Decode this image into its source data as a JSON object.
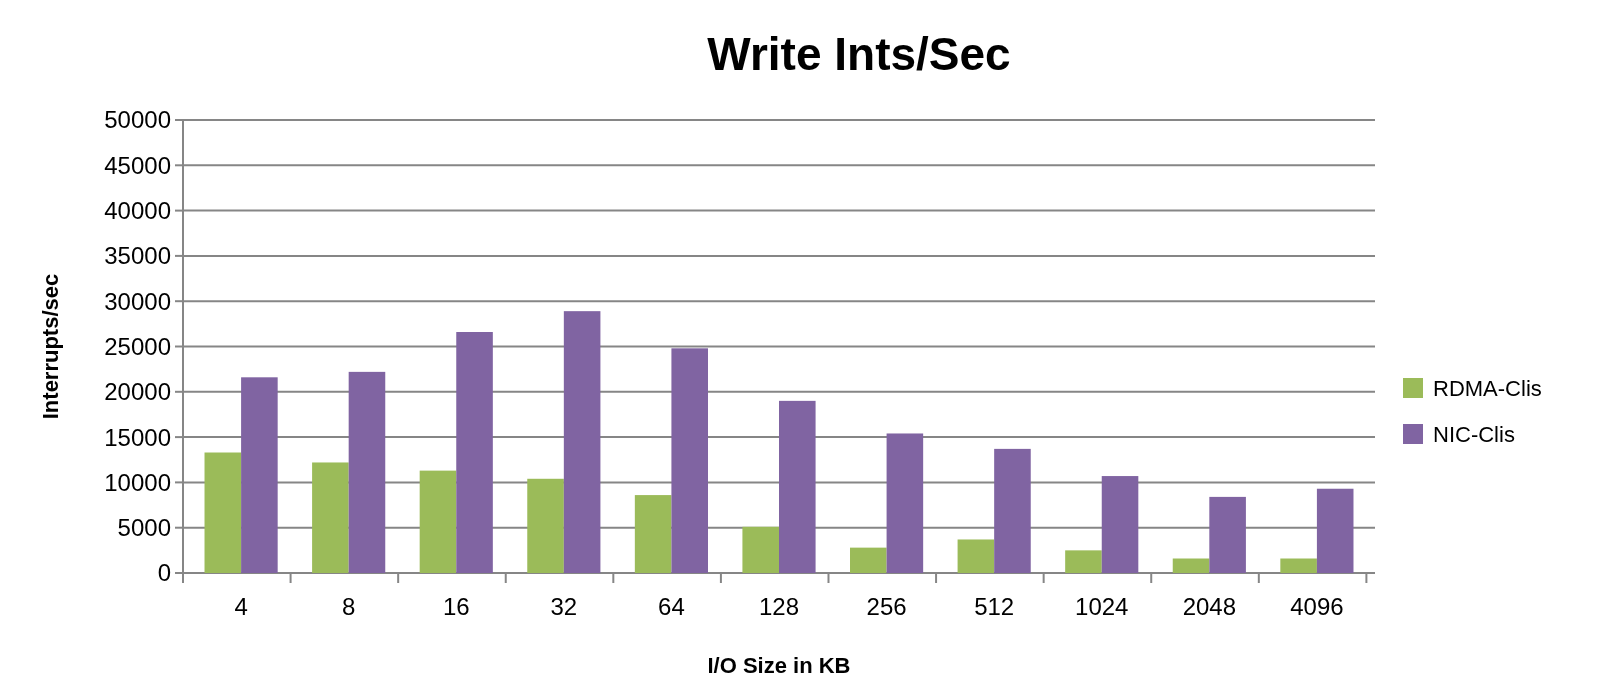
{
  "chart_data": {
    "type": "bar",
    "title": "Write Ints/Sec",
    "xlabel": "I/O Size in KB",
    "ylabel": "Interrupts/sec",
    "categories": [
      "4",
      "8",
      "16",
      "32",
      "64",
      "128",
      "256",
      "512",
      "1024",
      "2048",
      "4096"
    ],
    "series": [
      {
        "name": "RDMA-Clis",
        "color": "#9bbb59",
        "values": [
          13300,
          12200,
          11300,
          10400,
          8600,
          5100,
          2800,
          3700,
          2500,
          1600,
          1600
        ]
      },
      {
        "name": "NIC-Clis",
        "color": "#8064a2",
        "values": [
          21600,
          22200,
          26600,
          28900,
          24800,
          19000,
          15400,
          13700,
          10700,
          8400,
          9300
        ]
      }
    ],
    "ylim": [
      0,
      50000
    ],
    "yticks": [
      0,
      5000,
      10000,
      15000,
      20000,
      25000,
      30000,
      35000,
      40000,
      45000,
      50000
    ],
    "grid": "y",
    "legend": "right"
  }
}
